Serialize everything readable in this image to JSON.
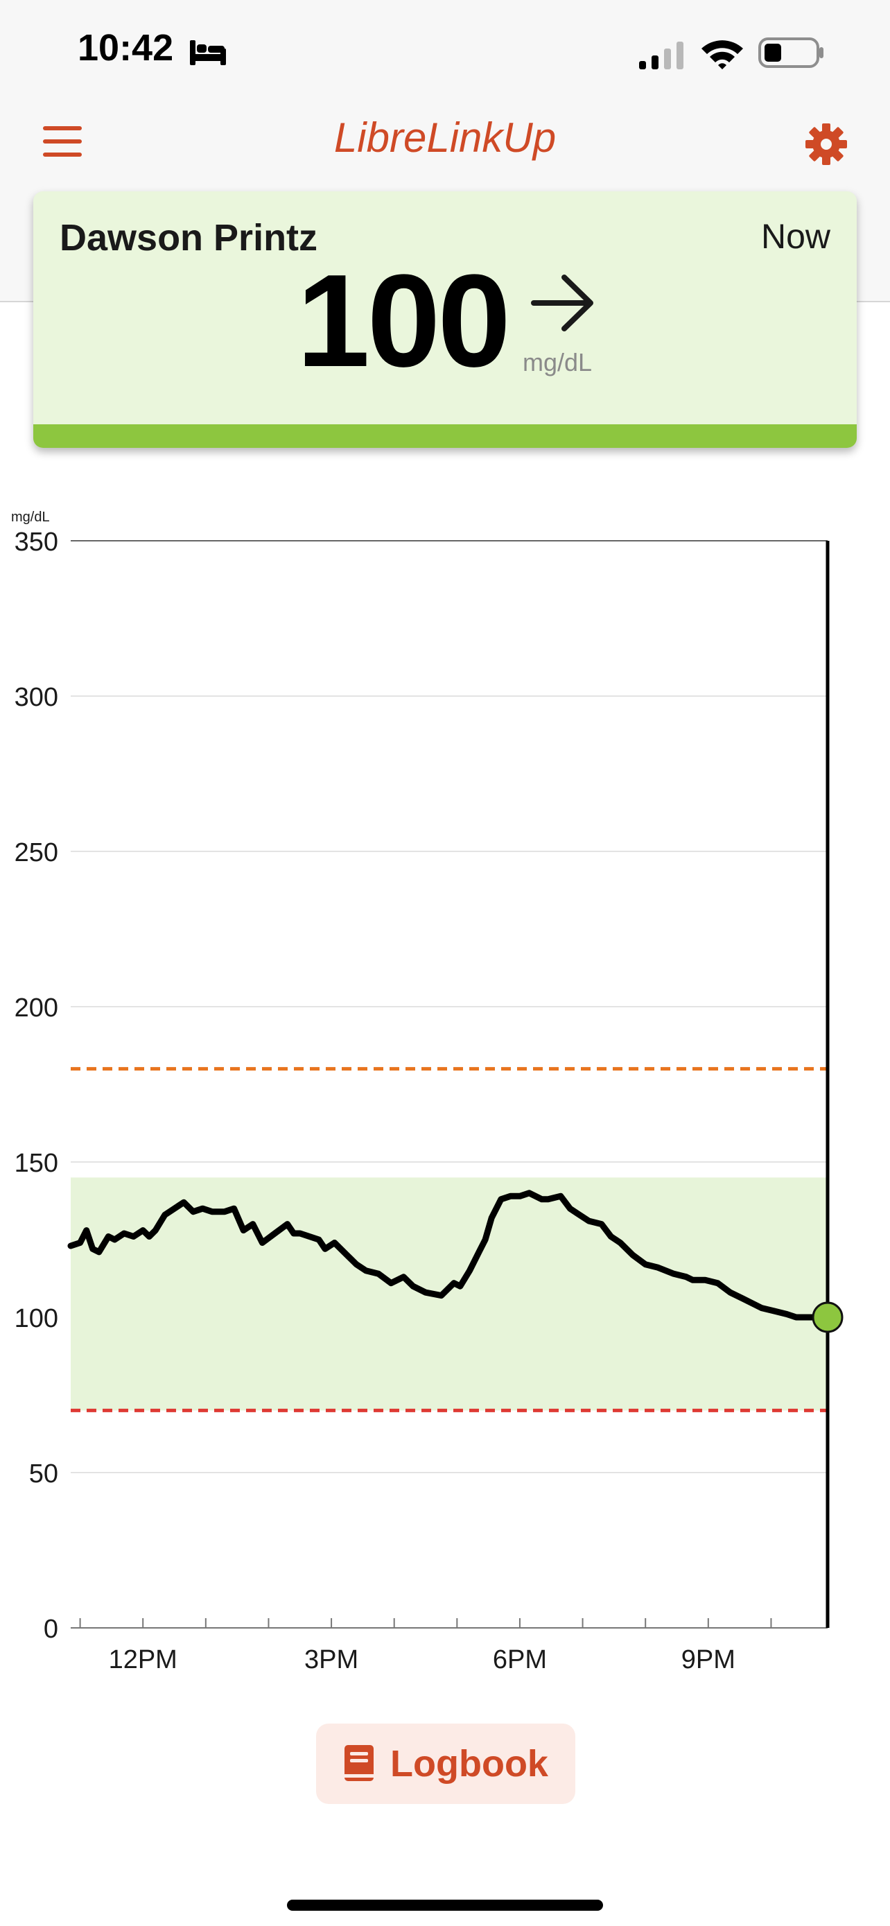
{
  "status_bar": {
    "time": "10:42",
    "sleep_icon": "bed-icon",
    "signal_icon": "cellular-signal-icon",
    "wifi_icon": "wifi-icon",
    "battery_icon": "battery-icon",
    "battery_level": 0.3
  },
  "nav": {
    "menu_icon": "hamburger-menu-icon",
    "title": "LibreLinkUp",
    "settings_icon": "gear-icon",
    "accent_color": "#cf4a26"
  },
  "card": {
    "patient_name": "Dawson Printz",
    "time": "Now",
    "value": "100",
    "unit": "mg/dL",
    "trend_icon": "arrow-right-icon",
    "status_color": "#8dc63f",
    "background_color": "#eaf6dc"
  },
  "chart_data": {
    "type": "line",
    "ylabel": "mg/dL",
    "ylim": [
      0,
      350
    ],
    "yticks": [
      "0",
      "50",
      "100",
      "150",
      "200",
      "250",
      "300",
      "350"
    ],
    "xlim_hours": [
      10.85,
      22.9
    ],
    "xticks": [
      {
        "hour": 12,
        "label": "12PM"
      },
      {
        "hour": 15,
        "label": "3PM"
      },
      {
        "hour": 18,
        "label": "6PM"
      },
      {
        "hour": 21,
        "label": "9PM"
      }
    ],
    "target_range": [
      70,
      145
    ],
    "high_threshold": 180,
    "low_threshold": 70,
    "grid": true,
    "current_value": 100,
    "series": [
      {
        "x": [
          10.85,
          11.0,
          11.1,
          11.2,
          11.3,
          11.45,
          11.55,
          11.7,
          11.85,
          12.0,
          12.1,
          12.2,
          12.35,
          12.5,
          12.65,
          12.8,
          12.95,
          13.1,
          13.3,
          13.45,
          13.6,
          13.75,
          13.9,
          14.1,
          14.3,
          14.4,
          14.5,
          14.65,
          14.8,
          14.9,
          15.05,
          15.25,
          15.4,
          15.55,
          15.75,
          15.95,
          16.15,
          16.3,
          16.5,
          16.75,
          16.95,
          17.05,
          17.2,
          17.35,
          17.45,
          17.55,
          17.7,
          17.85,
          18.0,
          18.15,
          18.35,
          18.45,
          18.65,
          18.8,
          18.95,
          19.1,
          19.3,
          19.45,
          19.6,
          19.8,
          20.0,
          20.2,
          20.45,
          20.65,
          20.75,
          20.95,
          21.15,
          21.35,
          21.55,
          21.75,
          21.85,
          22.05,
          22.25,
          22.4,
          22.6,
          22.75,
          22.9
        ],
        "y": [
          123,
          124,
          128,
          122,
          121,
          126,
          125,
          127,
          126,
          128,
          126,
          128,
          133,
          135,
          137,
          134,
          135,
          134,
          134,
          135,
          128,
          130,
          124,
          127,
          130,
          127,
          127,
          126,
          125,
          122,
          124,
          120,
          117,
          115,
          114,
          111,
          113,
          110,
          108,
          107,
          111,
          110,
          115,
          121,
          125,
          132,
          138,
          139,
          139,
          140,
          138,
          138,
          139,
          135,
          133,
          131,
          130,
          126,
          124,
          120,
          117,
          116,
          114,
          113,
          112,
          112,
          111,
          108,
          106,
          104,
          103,
          102,
          101,
          100,
          100,
          100,
          100
        ]
      }
    ]
  },
  "logbook_button": {
    "icon": "book-icon",
    "label": "Logbook"
  }
}
